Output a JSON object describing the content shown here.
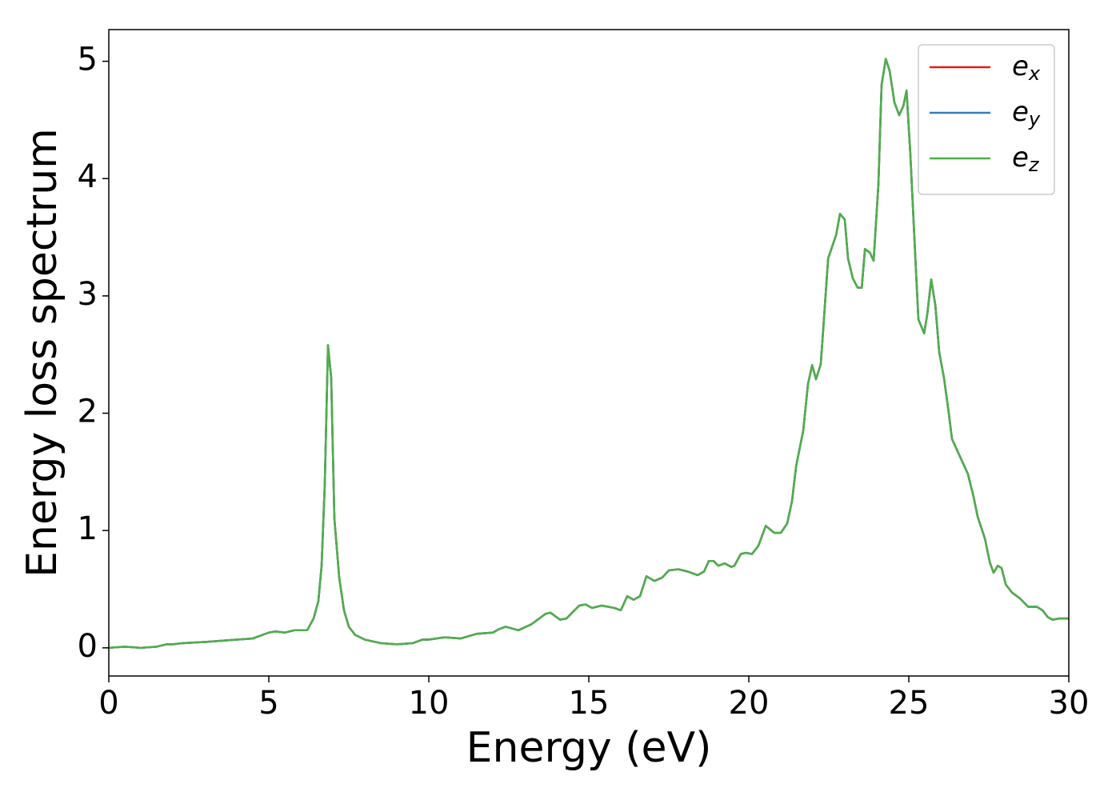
{
  "chart_data": {
    "type": "line",
    "xlabel": "Energy (eV)",
    "ylabel": "Energy loss spectrum",
    "x": [
      0,
      0.5,
      1.0,
      1.5,
      1.8,
      2.0,
      2.3,
      3.0,
      3.5,
      4.0,
      4.5,
      5.0,
      5.2,
      5.5,
      5.8,
      6.2,
      6.4,
      6.55,
      6.65,
      6.75,
      6.85,
      6.95,
      7.05,
      7.2,
      7.35,
      7.5,
      7.7,
      8.0,
      8.5,
      9.0,
      9.5,
      9.8,
      10.0,
      10.5,
      11.0,
      11.5,
      12.0,
      12.2,
      12.4,
      12.8,
      13.2,
      13.65,
      13.8,
      14.1,
      14.3,
      14.7,
      14.9,
      15.1,
      15.4,
      15.8,
      16.0,
      16.2,
      16.4,
      16.6,
      16.8,
      17.05,
      17.3,
      17.5,
      17.8,
      18.1,
      18.4,
      18.6,
      18.75,
      18.9,
      19.05,
      19.25,
      19.45,
      19.55,
      19.75,
      19.9,
      20.1,
      20.3,
      20.53,
      20.8,
      21.0,
      21.2,
      21.35,
      21.48,
      21.7,
      21.85,
      21.98,
      22.1,
      22.25,
      22.48,
      22.73,
      22.85,
      23.0,
      23.1,
      23.25,
      23.4,
      23.53,
      23.63,
      23.78,
      23.9,
      24.05,
      24.15,
      24.28,
      24.4,
      24.55,
      24.7,
      24.83,
      24.93,
      25.05,
      25.2,
      25.3,
      25.48,
      25.58,
      25.7,
      25.83,
      25.95,
      26.1,
      26.25,
      26.35,
      26.6,
      26.85,
      27.03,
      27.15,
      27.38,
      27.53,
      27.65,
      27.78,
      27.9,
      28.03,
      28.23,
      28.48,
      28.73,
      29.0,
      29.18,
      29.35,
      29.5,
      29.7,
      30.0
    ],
    "series": [
      {
        "name": "ex",
        "color": "#e41a1c",
        "values": [
          0.0,
          0.01,
          0.0,
          0.01,
          0.03,
          0.03,
          0.04,
          0.05,
          0.06,
          0.07,
          0.08,
          0.13,
          0.14,
          0.13,
          0.15,
          0.15,
          0.25,
          0.4,
          0.7,
          1.4,
          2.58,
          2.3,
          1.1,
          0.6,
          0.32,
          0.18,
          0.11,
          0.07,
          0.04,
          0.03,
          0.04,
          0.07,
          0.07,
          0.09,
          0.08,
          0.12,
          0.13,
          0.16,
          0.18,
          0.15,
          0.2,
          0.29,
          0.3,
          0.24,
          0.25,
          0.36,
          0.37,
          0.34,
          0.36,
          0.34,
          0.32,
          0.44,
          0.41,
          0.44,
          0.61,
          0.57,
          0.6,
          0.66,
          0.67,
          0.65,
          0.62,
          0.65,
          0.74,
          0.74,
          0.7,
          0.72,
          0.69,
          0.7,
          0.8,
          0.81,
          0.8,
          0.87,
          1.04,
          0.98,
          0.98,
          1.06,
          1.25,
          1.55,
          1.85,
          2.25,
          2.41,
          2.29,
          2.42,
          3.32,
          3.52,
          3.7,
          3.65,
          3.32,
          3.15,
          3.07,
          3.07,
          3.4,
          3.37,
          3.3,
          3.95,
          4.8,
          5.02,
          4.92,
          4.65,
          4.54,
          4.62,
          4.75,
          4.2,
          3.35,
          2.8,
          2.68,
          2.85,
          3.14,
          2.92,
          2.52,
          2.3,
          2.0,
          1.78,
          1.63,
          1.48,
          1.28,
          1.12,
          0.93,
          0.73,
          0.64,
          0.7,
          0.68,
          0.54,
          0.47,
          0.42,
          0.35,
          0.35,
          0.32,
          0.26,
          0.24,
          0.25,
          0.25
        ]
      },
      {
        "name": "ey",
        "color": "#377eb8",
        "values": [
          0.0,
          0.01,
          0.0,
          0.01,
          0.03,
          0.03,
          0.04,
          0.05,
          0.06,
          0.07,
          0.08,
          0.13,
          0.14,
          0.13,
          0.15,
          0.15,
          0.25,
          0.4,
          0.7,
          1.4,
          2.58,
          2.3,
          1.1,
          0.6,
          0.32,
          0.18,
          0.11,
          0.07,
          0.04,
          0.03,
          0.04,
          0.07,
          0.07,
          0.09,
          0.08,
          0.12,
          0.13,
          0.16,
          0.18,
          0.15,
          0.2,
          0.29,
          0.3,
          0.24,
          0.25,
          0.36,
          0.37,
          0.34,
          0.36,
          0.34,
          0.32,
          0.44,
          0.41,
          0.44,
          0.61,
          0.57,
          0.6,
          0.66,
          0.67,
          0.65,
          0.62,
          0.65,
          0.74,
          0.74,
          0.7,
          0.72,
          0.69,
          0.7,
          0.8,
          0.81,
          0.8,
          0.87,
          1.04,
          0.98,
          0.98,
          1.06,
          1.25,
          1.55,
          1.85,
          2.25,
          2.41,
          2.29,
          2.42,
          3.32,
          3.52,
          3.7,
          3.65,
          3.32,
          3.15,
          3.07,
          3.07,
          3.4,
          3.37,
          3.3,
          3.95,
          4.8,
          5.02,
          4.92,
          4.65,
          4.54,
          4.62,
          4.75,
          4.2,
          3.35,
          2.8,
          2.68,
          2.85,
          3.14,
          2.92,
          2.52,
          2.3,
          2.0,
          1.78,
          1.63,
          1.48,
          1.28,
          1.12,
          0.93,
          0.73,
          0.64,
          0.7,
          0.68,
          0.54,
          0.47,
          0.42,
          0.35,
          0.35,
          0.32,
          0.26,
          0.24,
          0.25,
          0.25
        ]
      },
      {
        "name": "ez",
        "color": "#4daf4a",
        "values": [
          0.0,
          0.01,
          0.0,
          0.01,
          0.03,
          0.03,
          0.04,
          0.05,
          0.06,
          0.07,
          0.08,
          0.13,
          0.14,
          0.13,
          0.15,
          0.15,
          0.25,
          0.4,
          0.7,
          1.4,
          2.58,
          2.3,
          1.1,
          0.6,
          0.32,
          0.18,
          0.11,
          0.07,
          0.04,
          0.03,
          0.04,
          0.07,
          0.07,
          0.09,
          0.08,
          0.12,
          0.13,
          0.16,
          0.18,
          0.15,
          0.2,
          0.29,
          0.3,
          0.24,
          0.25,
          0.36,
          0.37,
          0.34,
          0.36,
          0.34,
          0.32,
          0.44,
          0.41,
          0.44,
          0.61,
          0.57,
          0.6,
          0.66,
          0.67,
          0.65,
          0.62,
          0.65,
          0.74,
          0.74,
          0.7,
          0.72,
          0.69,
          0.7,
          0.8,
          0.81,
          0.8,
          0.87,
          1.04,
          0.98,
          0.98,
          1.06,
          1.25,
          1.55,
          1.85,
          2.25,
          2.41,
          2.29,
          2.42,
          3.32,
          3.52,
          3.7,
          3.65,
          3.32,
          3.15,
          3.07,
          3.07,
          3.4,
          3.37,
          3.3,
          3.95,
          4.8,
          5.02,
          4.92,
          4.65,
          4.54,
          4.62,
          4.75,
          4.2,
          3.35,
          2.8,
          2.68,
          2.85,
          3.14,
          2.92,
          2.52,
          2.3,
          2.0,
          1.78,
          1.63,
          1.48,
          1.28,
          1.12,
          0.93,
          0.73,
          0.64,
          0.7,
          0.68,
          0.54,
          0.47,
          0.42,
          0.35,
          0.35,
          0.32,
          0.26,
          0.24,
          0.25,
          0.25
        ]
      }
    ],
    "xlim": [
      0,
      30
    ],
    "xticks": [
      0,
      5,
      10,
      15,
      20,
      25,
      30
    ],
    "ylim": [
      -0.24,
      5.27
    ],
    "yticks": [
      0,
      1,
      2,
      3,
      4,
      5
    ],
    "grid": false,
    "legend": "upper right"
  }
}
